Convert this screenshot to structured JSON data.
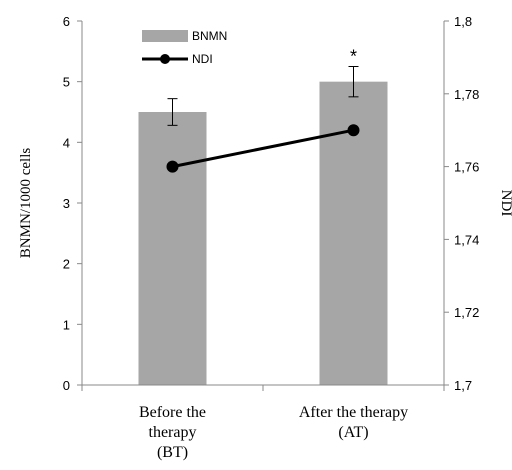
{
  "chart_data": {
    "type": "bar",
    "categories": [
      [
        "Before the",
        "therapy",
        "(BT)"
      ],
      [
        "After the therapy",
        "(AT)"
      ]
    ],
    "series": [
      {
        "name": "BNMN",
        "type": "bar",
        "axis": "left",
        "values": [
          4.5,
          5.0
        ],
        "errors": [
          0.22,
          0.25
        ],
        "color": "#a6a6a6"
      },
      {
        "name": "NDI",
        "type": "line",
        "axis": "right",
        "values": [
          1.76,
          1.77
        ],
        "color": "#000000"
      }
    ],
    "ylabel_left": "BNMN/1000 cells",
    "ylabel_right": "NDI",
    "ylim_left": [
      0,
      6
    ],
    "ylim_right": [
      1.7,
      1.8
    ],
    "yticks_left": [
      "0",
      "1",
      "2",
      "3",
      "4",
      "5",
      "6"
    ],
    "yticks_right": [
      "1,7",
      "1,72",
      "1,74",
      "1,76",
      "1,78",
      "1,8"
    ],
    "annotations": [
      {
        "category_index": 1,
        "text": "*"
      }
    ],
    "legend_position": "top-left",
    "grid": false
  }
}
